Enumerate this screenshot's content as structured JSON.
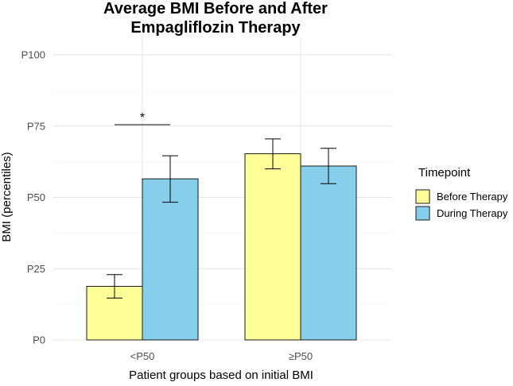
{
  "chart_data": {
    "type": "bar",
    "title_line1": "Average BMI Before and After",
    "title_line2": "Empagliflozin Therapy",
    "xlabel": "Patient groups based on initial BMI",
    "ylabel": "BMI (percentiles)",
    "categories": [
      "<P50",
      "≥P50"
    ],
    "ylim": [
      0,
      100
    ],
    "yticks": [
      {
        "value": 0,
        "label": "P0"
      },
      {
        "value": 25,
        "label": "P25"
      },
      {
        "value": 50,
        "label": "P50"
      },
      {
        "value": 75,
        "label": "P75"
      },
      {
        "value": 100,
        "label": "P100"
      }
    ],
    "legend_title": "Timepoint",
    "legend_position": "right",
    "series": [
      {
        "name": "Before Therapy",
        "color": "#FFFF99",
        "values": [
          18.8,
          65.3
        ],
        "error_low": [
          14.7,
          60.0
        ],
        "error_high": [
          22.9,
          70.5
        ]
      },
      {
        "name": "During Therapy",
        "color": "#87CEEB",
        "values": [
          56.5,
          61.0
        ],
        "error_low": [
          48.3,
          54.8
        ],
        "error_high": [
          64.6,
          67.2
        ]
      }
    ],
    "significance": [
      {
        "category_index": 0,
        "label": "*",
        "y": 75.5
      }
    ],
    "grid": true
  }
}
